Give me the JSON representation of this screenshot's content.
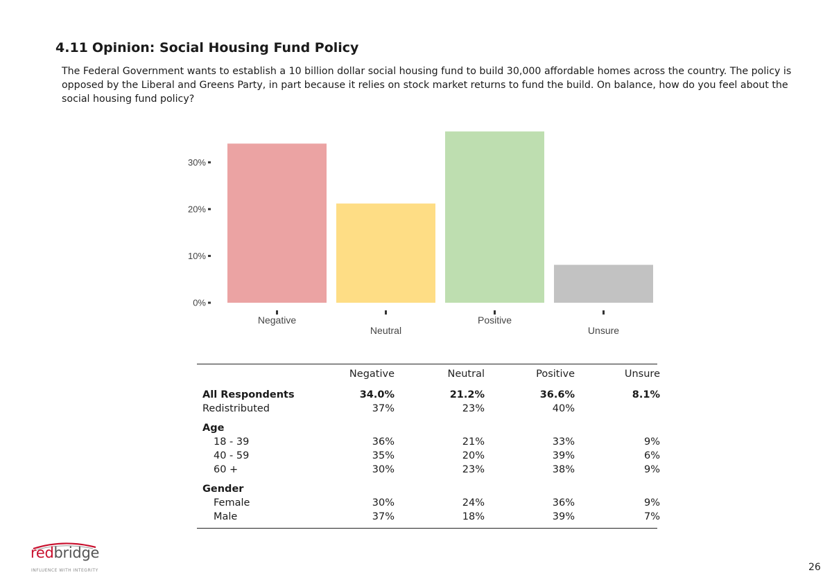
{
  "section": {
    "number": "4.11",
    "title": "Opinion: Social Housing Fund Policy"
  },
  "question": "The Federal Government wants to establish a 10 billion dollar social housing fund to build 30,000 affordable homes across the country.  The policy is opposed by the Liberal and Greens Party, in part because it relies on stock market returns to fund the build.  On balance, how do you feel about the social housing fund policy?",
  "chart_data": {
    "type": "bar",
    "title": "",
    "xlabel": "",
    "ylabel": "",
    "categories": [
      "Negative",
      "Neutral",
      "Positive",
      "Unsure"
    ],
    "values": [
      34.0,
      21.2,
      36.6,
      8.1
    ],
    "ylim": [
      0,
      37
    ],
    "yticks": [
      0,
      10,
      20,
      30
    ],
    "ytick_labels": [
      "0%",
      "10%",
      "20%",
      "30%"
    ],
    "colors": [
      "#eba3a3",
      "#fedd85",
      "#bedeb0",
      "#c2c2c2"
    ],
    "grid": false
  },
  "table": {
    "columns": [
      "Negative",
      "Neutral",
      "Positive",
      "Unsure"
    ],
    "rows": [
      {
        "label": "All Respondents",
        "values": [
          "34.0%",
          "21.2%",
          "36.6%",
          "8.1%"
        ],
        "style": "bold"
      },
      {
        "label": "Redistributed",
        "values": [
          "37%",
          "23%",
          "40%",
          ""
        ],
        "style": "normal"
      },
      {
        "label": "Age",
        "values": [
          "",
          "",
          "",
          ""
        ],
        "style": "group"
      },
      {
        "label": "18 - 39",
        "values": [
          "36%",
          "21%",
          "33%",
          "9%"
        ],
        "style": "indent"
      },
      {
        "label": "40 - 59",
        "values": [
          "35%",
          "20%",
          "39%",
          "6%"
        ],
        "style": "indent"
      },
      {
        "label": "60 +",
        "values": [
          "30%",
          "23%",
          "38%",
          "9%"
        ],
        "style": "indent"
      },
      {
        "label": "Gender",
        "values": [
          "",
          "",
          "",
          ""
        ],
        "style": "group"
      },
      {
        "label": "Female",
        "values": [
          "30%",
          "24%",
          "36%",
          "9%"
        ],
        "style": "indent"
      },
      {
        "label": "Male",
        "values": [
          "37%",
          "18%",
          "39%",
          "7%"
        ],
        "style": "indent"
      }
    ]
  },
  "logo": {
    "red_part": "red",
    "grey_part": "bridge",
    "tagline": "INFLUENCE WITH INTEGRITY",
    "brand_color": "#c8102e"
  },
  "page_number": "26"
}
